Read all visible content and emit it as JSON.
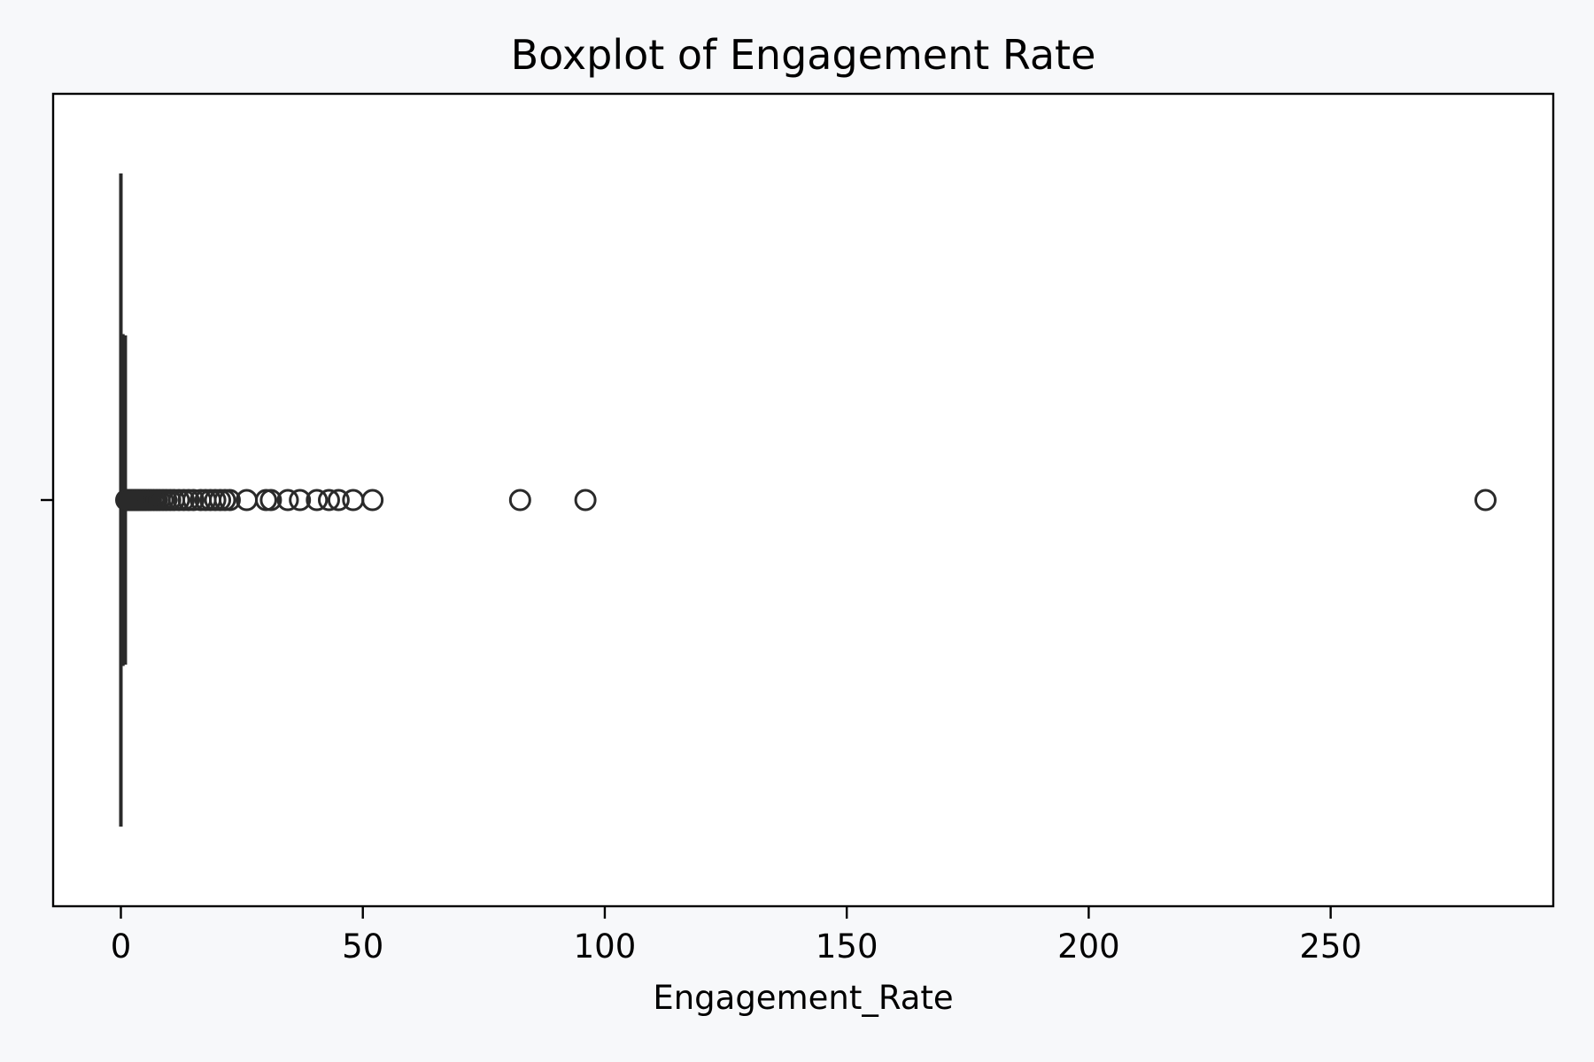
{
  "chart_data": {
    "type": "boxplot",
    "orientation": "horizontal",
    "title": "Boxplot of Engagement Rate",
    "xlabel": "Engagement_Rate",
    "ylabel": "",
    "xlim": [
      -14,
      296
    ],
    "xticks": [
      0,
      50,
      100,
      150,
      200,
      250
    ],
    "xtick_labels": [
      "0",
      "50",
      "100",
      "150",
      "200",
      "250"
    ],
    "grid": false,
    "series": [
      {
        "whisker_low": 0.0,
        "q1": 0.05,
        "median": 0.15,
        "q3": 0.45,
        "whisker_high": 1.0,
        "outliers": [
          1.1,
          1.3,
          1.5,
          1.7,
          1.9,
          2.1,
          2.4,
          2.7,
          3.0,
          3.3,
          3.6,
          4.0,
          4.4,
          4.8,
          5.2,
          5.7,
          6.2,
          6.8,
          7.4,
          8.0,
          8.7,
          9.4,
          10.2,
          11.0,
          12.0,
          13.0,
          14.0,
          15.0,
          16.5,
          17.5,
          18.5,
          19.5,
          20.5,
          21.5,
          22.5,
          26.0,
          30.0,
          31.0,
          34.5,
          37.0,
          40.5,
          43.0,
          45.0,
          48.0,
          52.0,
          82.5,
          96.0,
          282.0
        ]
      }
    ],
    "colors": {
      "box_edge": "#2a2a2a",
      "outlier_edge": "#2a2a2a",
      "plot_background": "#ffffff",
      "figure_background": "#f7f8fa"
    }
  }
}
